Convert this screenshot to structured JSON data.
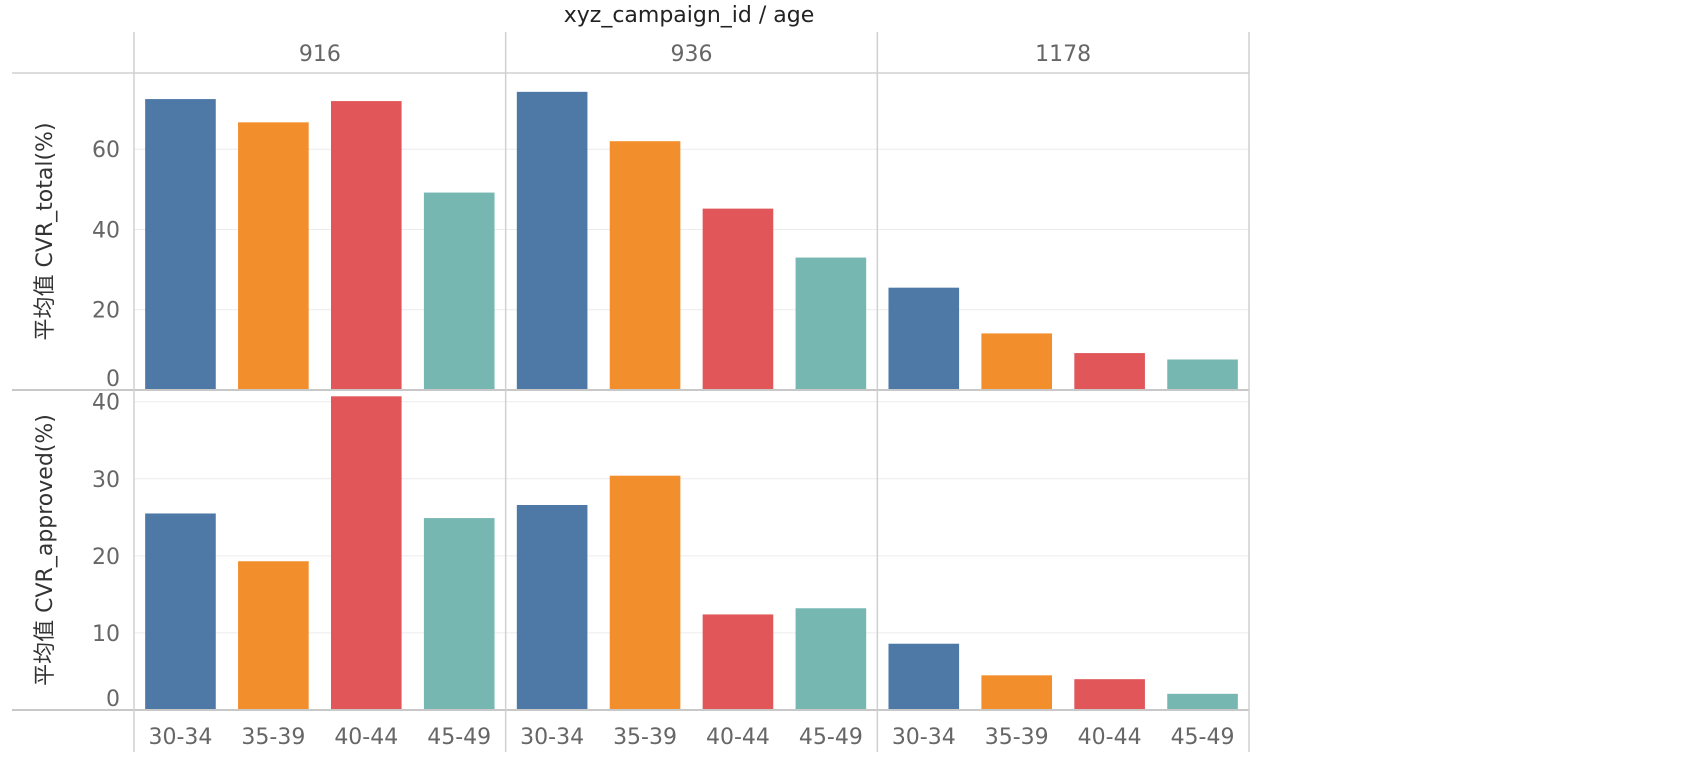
{
  "chart_data": {
    "type": "bar",
    "title": "xyz_campaign_id / age",
    "campaign_ids": [
      "916",
      "936",
      "1178"
    ],
    "categories": [
      "30-34",
      "35-39",
      "40-44",
      "45-49"
    ],
    "colors": {
      "30-34": "#4e79a7",
      "35-39": "#f28e2b",
      "40-44": "#e15759",
      "45-49": "#76b7b2"
    },
    "panels": [
      {
        "ylabel": "平均值 CVR_total(%)",
        "ylim": [
          0,
          78
        ],
        "yticks": [
          0,
          20,
          40,
          60
        ],
        "values": {
          "916": [
            72.5,
            66.7,
            72.0,
            49.2
          ],
          "936": [
            74.3,
            62.0,
            45.2,
            33.0
          ],
          "1178": [
            25.5,
            14.1,
            9.2,
            7.6
          ]
        }
      },
      {
        "ylabel": "平均值 CVR_approved(%)",
        "ylim": [
          0,
          41
        ],
        "yticks": [
          0,
          10,
          20,
          30,
          40
        ],
        "values": {
          "916": [
            25.5,
            19.3,
            40.7,
            24.9
          ],
          "936": [
            26.6,
            30.4,
            12.4,
            13.2
          ],
          "1178": [
            8.6,
            4.5,
            4.0,
            2.1
          ]
        }
      }
    ],
    "grid": true,
    "legend": "none"
  }
}
